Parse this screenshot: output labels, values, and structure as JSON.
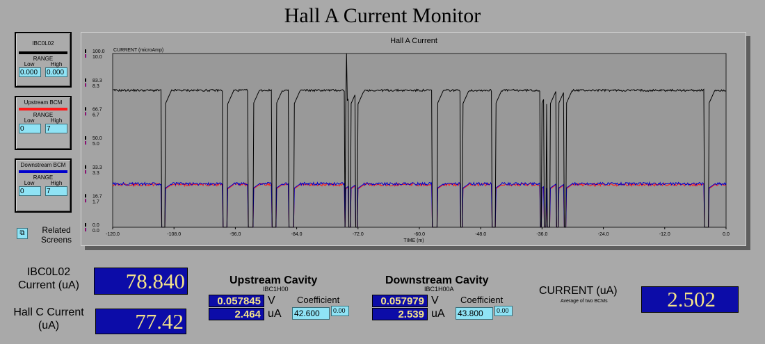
{
  "page_title": "Hall A Current Monitor",
  "legends": [
    {
      "name": "IBC0L02",
      "color": "#000000",
      "range_label": "RANGE",
      "low_label": "Low",
      "high_label": "High",
      "low": "0.000",
      "high": "0.000"
    },
    {
      "name": "Upstream BCM",
      "color": "#ff1a1a",
      "range_label": "RANGE",
      "low_label": "Low",
      "high_label": "High",
      "low": "0",
      "high": "7"
    },
    {
      "name": "Downstream BCM",
      "color": "#0000cc",
      "range_label": "RANGE",
      "low_label": "Low",
      "high_label": "High",
      "low": "0",
      "high": "7"
    }
  ],
  "related_screens": "Related Screens",
  "chart_data": {
    "type": "line",
    "title": "Hall A Current",
    "ylabel": "CURRENT (microAmp)",
    "xlabel": "TIME (m)",
    "xlim": [
      -120,
      0
    ],
    "x_ticks": [
      "-120.0",
      "-108.0",
      "-96.0",
      "-84.0",
      "-72.0",
      "-60.0",
      "-48.0",
      "-36.0",
      "-24.0",
      "-12.0",
      "0.0"
    ],
    "y_ticks_primary": [
      "0.0",
      "16.7",
      "33.3",
      "50.0",
      "66.7",
      "83.3",
      "100.0"
    ],
    "y_ticks_secondary": [
      "0.0",
      "1.7",
      "3.3",
      "5.0",
      "6.7",
      "8.3",
      "10.0"
    ],
    "ylim": [
      0,
      100
    ],
    "dips": [
      [
        -110.5,
        -109.7
      ],
      [
        -98.5,
        -97.5
      ],
      [
        -93.5,
        -92.5
      ],
      [
        -88.8,
        -88.0
      ],
      [
        -85.5,
        -84.5
      ],
      [
        -74.6,
        -74.4
      ],
      [
        -73.8,
        -73.4
      ],
      [
        -72.5,
        -72.0
      ],
      [
        -57.5,
        -56.5
      ],
      [
        -52.0,
        -51.5
      ],
      [
        -45.8,
        -45.1
      ],
      [
        -36.3,
        -36.1
      ],
      [
        -35.6,
        -35.1
      ],
      [
        -35.0,
        -34.4
      ],
      [
        -33.2,
        -32.8
      ],
      [
        -31.7,
        -31.3
      ],
      [
        -4.2,
        -3.4
      ]
    ],
    "series": [
      {
        "name": "IBC0L02",
        "color": "#000000",
        "baseline": 78.8,
        "spike": {
          "x": -74.2,
          "y": 100
        }
      },
      {
        "name": "Upstream BCM",
        "color": "#ff1a1a",
        "baseline": 2.45,
        "scale_max": 10
      },
      {
        "name": "Downstream BCM",
        "color": "#0000cc",
        "baseline": 2.5,
        "scale_max": 10
      }
    ]
  },
  "readouts": {
    "ibc": {
      "label": "IBC0L02 Current (uA)",
      "value": "78.840"
    },
    "hallc": {
      "label": "Hall C Current (uA)",
      "value": "77.42"
    },
    "upstream": {
      "title": "Upstream Cavity",
      "id": "IBC1H00",
      "volts": "0.057845",
      "v_unit": "V",
      "ua": "2.464",
      "ua_unit": "uA",
      "coef_label": "Coefficient",
      "coef": "42.600",
      "offset": "0.00"
    },
    "downstream": {
      "title": "Downstream Cavity",
      "id": "IBC1H00A",
      "volts": "0.057979",
      "v_unit": "V",
      "ua": "2.539",
      "ua_unit": "uA",
      "coef_label": "Coefficient",
      "coef": "43.800",
      "offset": "0.00"
    },
    "current": {
      "label": "CURRENT (uA)",
      "sublabel": "Average of two BCMs",
      "value": "2.502"
    }
  }
}
